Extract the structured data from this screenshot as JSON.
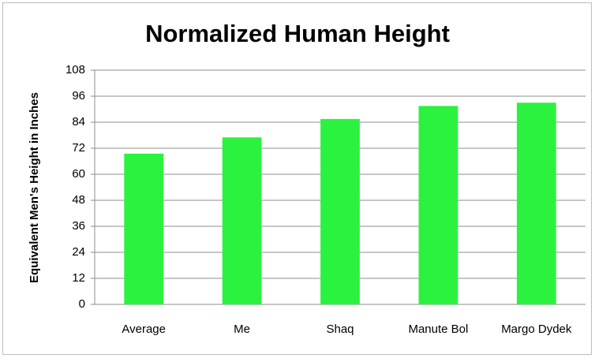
{
  "chart_data": {
    "type": "bar",
    "title": "Normalized Human Height",
    "y_label": "Equivalent Men's Height in Inches",
    "categories": [
      "Average",
      "Me",
      "Shaq",
      "Manute Bol",
      "Margo Dydek"
    ],
    "values": [
      69.5,
      77,
      85.5,
      91.5,
      93
    ],
    "color": "#2bf23f",
    "ylim": [
      0,
      108
    ],
    "yticks": [
      0,
      12,
      24,
      36,
      48,
      60,
      72,
      84,
      96,
      108
    ],
    "grid": true
  }
}
